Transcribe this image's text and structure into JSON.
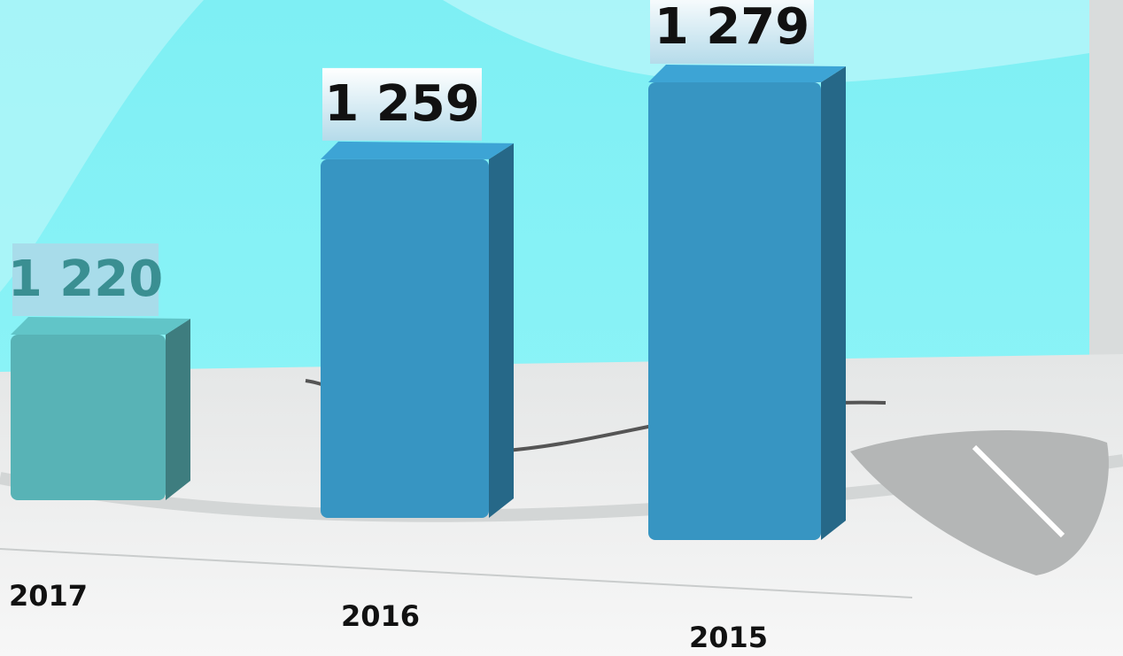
{
  "chart_data": {
    "type": "bar",
    "categories": [
      "2017",
      "2016",
      "2015"
    ],
    "values": [
      1220,
      1259,
      1279
    ],
    "value_labels": [
      "1 220",
      "1 259",
      "1 279"
    ],
    "colors": [
      "#58b3b6",
      "#3795c2",
      "#3795c2"
    ]
  }
}
